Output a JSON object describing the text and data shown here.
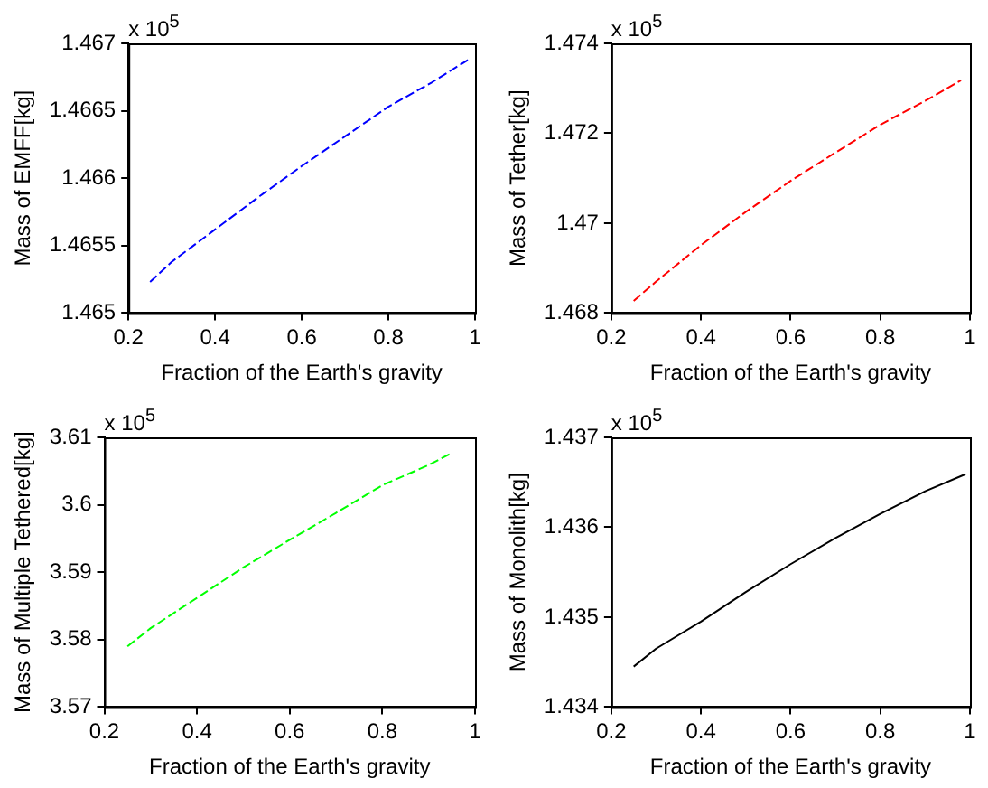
{
  "chart_data": [
    {
      "type": "line",
      "xlabel": "Fraction of the Earth's gravity",
      "ylabel": "Mass of EMFF[kg]",
      "annotations": [
        "x 10$^{5}$"
      ],
      "x": [
        0.25,
        0.3,
        0.4,
        0.5,
        0.6,
        0.7,
        0.8,
        0.9,
        0.99
      ],
      "xlim": [
        0.2,
        1
      ],
      "xticks": [
        0.2,
        0.4,
        0.6,
        0.8,
        1
      ],
      "ylim": [
        1.465,
        1.467
      ],
      "yticks": [
        1.465,
        1.4655,
        1.466,
        1.4665,
        1.467
      ],
      "grid": false,
      "legend": false,
      "marker": "none",
      "line_style": "dashed",
      "series": [
        {
          "color": "#0000ff",
          "values": [
            1.46523,
            1.46538,
            1.46562,
            1.46586,
            1.46609,
            1.46631,
            1.46653,
            1.46671,
            1.46689
          ]
        }
      ]
    },
    {
      "type": "line",
      "xlabel": "Fraction of the Earth's gravity",
      "ylabel": "Mass of Tether[kg]",
      "annotations": [
        "x 10$^{5}$"
      ],
      "x": [
        0.25,
        0.3,
        0.4,
        0.5,
        0.6,
        0.7,
        0.8,
        0.9,
        0.98
      ],
      "xlim": [
        0.2,
        1
      ],
      "xticks": [
        0.2,
        0.4,
        0.6,
        0.8,
        1
      ],
      "ylim": [
        1.468,
        1.474
      ],
      "yticks": [
        1.468,
        1.47,
        1.472,
        1.474
      ],
      "grid": false,
      "legend": false,
      "marker": "none",
      "line_style": "dashed",
      "series": [
        {
          "color": "#ff0000",
          "values": [
            1.46827,
            1.4687,
            1.46951,
            1.47025,
            1.47094,
            1.47157,
            1.47219,
            1.47272,
            1.47318
          ]
        }
      ]
    },
    {
      "type": "line",
      "xlabel": "Fraction of the Earth's gravity",
      "ylabel": "Mass of Multiple Tethered[kg]",
      "annotations": [
        "x 10$^{5}$"
      ],
      "x": [
        0.25,
        0.3,
        0.4,
        0.5,
        0.6,
        0.7,
        0.8,
        0.9,
        0.95
      ],
      "xlim": [
        0.2,
        1
      ],
      "xticks": [
        0.2,
        0.4,
        0.6,
        0.8,
        1
      ],
      "ylim": [
        3.57,
        3.61
      ],
      "yticks": [
        3.57,
        3.58,
        3.59,
        3.6,
        3.61
      ],
      "grid": false,
      "legend": false,
      "marker": "none",
      "line_style": "dashed",
      "series": [
        {
          "color": "#00ff00",
          "values": [
            3.579,
            3.5817,
            3.5862,
            3.5907,
            3.5948,
            3.5988,
            3.6029,
            3.6059,
            3.6077
          ]
        }
      ]
    },
    {
      "type": "line",
      "xlabel": "Fraction of the Earth's gravity",
      "ylabel": "Mass of Monolith[kg]",
      "annotations": [
        "x 10$^{5}$"
      ],
      "x": [
        0.25,
        0.3,
        0.4,
        0.5,
        0.6,
        0.7,
        0.8,
        0.9,
        0.99
      ],
      "xlim": [
        0.2,
        1
      ],
      "xticks": [
        0.2,
        0.4,
        0.6,
        0.8,
        1
      ],
      "ylim": [
        1.434,
        1.437
      ],
      "yticks": [
        1.434,
        1.435,
        1.436,
        1.437
      ],
      "grid": false,
      "legend": false,
      "marker": "none",
      "line_style": "solid",
      "series": [
        {
          "color": "#000000",
          "values": [
            1.43445,
            1.43465,
            1.43495,
            1.43528,
            1.43559,
            1.43588,
            1.43615,
            1.4364,
            1.43659
          ]
        }
      ]
    }
  ]
}
